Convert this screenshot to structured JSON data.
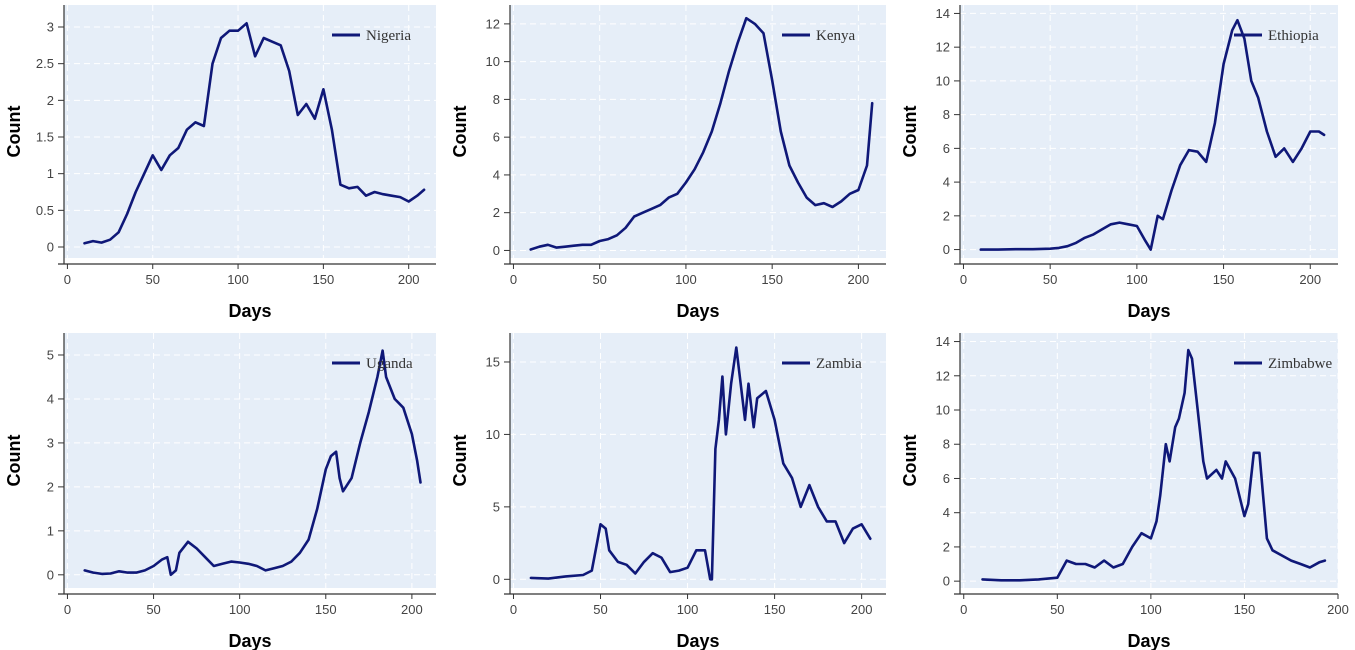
{
  "theme": {
    "panel_bg": "#e6eef8",
    "grid": "#ffffff",
    "line": "#0f1878",
    "axis": "#333333"
  },
  "chart_data": [
    {
      "type": "line",
      "legend": "top-right",
      "grid": true,
      "xlabel": "Days",
      "ylabel": "Count",
      "xlim": [
        -2,
        216
      ],
      "ylim": [
        -0.15,
        3.3
      ],
      "xticks": [
        0,
        50,
        100,
        150,
        200
      ],
      "yticks": [
        0,
        0.5,
        1,
        1.5,
        2,
        2.5,
        3
      ],
      "series": [
        {
          "name": "Nigeria",
          "x": [
            10,
            15,
            20,
            25,
            30,
            35,
            40,
            45,
            50,
            55,
            60,
            65,
            70,
            75,
            80,
            85,
            90,
            95,
            100,
            105,
            110,
            115,
            120,
            125,
            130,
            135,
            140,
            145,
            150,
            155,
            160,
            165,
            170,
            175,
            180,
            185,
            190,
            195,
            200,
            205,
            209
          ],
          "y": [
            0.05,
            0.08,
            0.06,
            0.1,
            0.2,
            0.45,
            0.75,
            1.0,
            1.25,
            1.05,
            1.25,
            1.35,
            1.6,
            1.7,
            1.65,
            2.5,
            2.85,
            2.95,
            2.95,
            3.05,
            2.6,
            2.85,
            2.8,
            2.75,
            2.4,
            1.8,
            1.95,
            1.75,
            2.15,
            1.6,
            0.85,
            0.8,
            0.82,
            0.7,
            0.75,
            0.72,
            0.7,
            0.68,
            0.62,
            0.7,
            0.78
          ]
        }
      ]
    },
    {
      "type": "line",
      "legend": "top-right",
      "grid": true,
      "xlabel": "Days",
      "ylabel": "Count",
      "xlim": [
        -2,
        216
      ],
      "ylim": [
        -0.4,
        13
      ],
      "xticks": [
        0,
        50,
        100,
        150,
        200
      ],
      "yticks": [
        0,
        2,
        4,
        6,
        8,
        10,
        12
      ],
      "series": [
        {
          "name": "Kenya",
          "x": [
            10,
            15,
            20,
            25,
            30,
            35,
            40,
            45,
            50,
            55,
            60,
            65,
            70,
            75,
            80,
            85,
            90,
            95,
            100,
            105,
            110,
            115,
            120,
            125,
            130,
            135,
            140,
            145,
            150,
            155,
            160,
            165,
            170,
            175,
            180,
            185,
            190,
            195,
            200,
            205,
            208
          ],
          "y": [
            0.05,
            0.2,
            0.3,
            0.15,
            0.2,
            0.25,
            0.3,
            0.3,
            0.5,
            0.6,
            0.8,
            1.2,
            1.8,
            2.0,
            2.2,
            2.4,
            2.8,
            3.0,
            3.6,
            4.3,
            5.2,
            6.3,
            7.8,
            9.5,
            11.0,
            12.3,
            12.0,
            11.5,
            9.0,
            6.3,
            4.5,
            3.6,
            2.8,
            2.4,
            2.5,
            2.3,
            2.6,
            3.0,
            3.2,
            4.5,
            7.8
          ]
        }
      ]
    },
    {
      "type": "line",
      "legend": "top-right",
      "grid": true,
      "xlabel": "Days",
      "ylabel": "Count",
      "xlim": [
        -2,
        216
      ],
      "ylim": [
        -0.5,
        14.5
      ],
      "xticks": [
        0,
        50,
        100,
        150,
        200
      ],
      "yticks": [
        0,
        2,
        4,
        6,
        8,
        10,
        12,
        14
      ],
      "series": [
        {
          "name": "Ethiopia",
          "x": [
            10,
            20,
            30,
            40,
            50,
            55,
            60,
            65,
            70,
            75,
            80,
            85,
            90,
            95,
            100,
            105,
            108,
            112,
            115,
            120,
            125,
            130,
            135,
            140,
            145,
            150,
            155,
            158,
            162,
            166,
            170,
            175,
            180,
            185,
            190,
            195,
            200,
            205,
            208
          ],
          "y": [
            0,
            0,
            0.02,
            0.02,
            0.05,
            0.1,
            0.2,
            0.4,
            0.7,
            0.9,
            1.2,
            1.5,
            1.6,
            1.5,
            1.4,
            0.5,
            0,
            2.0,
            1.8,
            3.5,
            5.0,
            5.9,
            5.8,
            5.2,
            7.5,
            11.0,
            13.0,
            13.6,
            12.5,
            10.0,
            9.0,
            7.0,
            5.5,
            6.0,
            5.2,
            6.0,
            7.0,
            7.0,
            6.8
          ]
        }
      ]
    },
    {
      "type": "line",
      "legend": "top-right",
      "grid": true,
      "xlabel": "Days",
      "ylabel": "Count",
      "xlim": [
        -2,
        214
      ],
      "ylim": [
        -0.3,
        5.5
      ],
      "xticks": [
        0,
        50,
        100,
        150,
        200
      ],
      "yticks": [
        0,
        1,
        2,
        3,
        4,
        5
      ],
      "series": [
        {
          "name": "Uganda",
          "x": [
            10,
            15,
            20,
            25,
            30,
            35,
            40,
            45,
            50,
            55,
            58,
            60,
            63,
            65,
            70,
            75,
            80,
            85,
            90,
            95,
            100,
            105,
            110,
            115,
            120,
            125,
            130,
            135,
            140,
            145,
            150,
            153,
            156,
            158,
            160,
            165,
            170,
            175,
            180,
            183,
            185,
            190,
            195,
            200,
            203,
            205
          ],
          "y": [
            0.1,
            0.05,
            0.02,
            0.03,
            0.08,
            0.05,
            0.05,
            0.1,
            0.2,
            0.35,
            0.4,
            0,
            0.1,
            0.5,
            0.75,
            0.6,
            0.4,
            0.2,
            0.25,
            0.3,
            0.28,
            0.25,
            0.2,
            0.1,
            0.15,
            0.2,
            0.3,
            0.5,
            0.8,
            1.5,
            2.4,
            2.7,
            2.8,
            2.2,
            1.9,
            2.2,
            3.0,
            3.7,
            4.5,
            5.1,
            4.5,
            4.0,
            3.8,
            3.2,
            2.6,
            2.1
          ]
        }
      ]
    },
    {
      "type": "line",
      "legend": "top-right",
      "grid": true,
      "xlabel": "Days",
      "ylabel": "Count",
      "xlim": [
        -2,
        214
      ],
      "ylim": [
        -0.6,
        17
      ],
      "xticks": [
        0,
        50,
        100,
        150,
        200
      ],
      "yticks": [
        0,
        5,
        10,
        15
      ],
      "series": [
        {
          "name": "Zambia",
          "x": [
            10,
            20,
            30,
            40,
            45,
            48,
            50,
            53,
            55,
            60,
            65,
            70,
            75,
            80,
            85,
            90,
            95,
            100,
            105,
            110,
            113,
            114,
            116,
            118,
            120,
            122,
            125,
            128,
            130,
            133,
            135,
            138,
            140,
            145,
            150,
            155,
            160,
            165,
            170,
            175,
            180,
            185,
            190,
            195,
            200,
            205
          ],
          "y": [
            0.1,
            0.05,
            0.2,
            0.3,
            0.6,
            2.5,
            3.8,
            3.5,
            2.0,
            1.2,
            1.0,
            0.4,
            1.2,
            1.8,
            1.5,
            0.5,
            0.6,
            0.8,
            2.0,
            2.0,
            0,
            0,
            9.0,
            11.0,
            14.0,
            10.0,
            13.5,
            16.0,
            14.0,
            11.0,
            13.5,
            10.5,
            12.5,
            13.0,
            11.0,
            8.0,
            7.0,
            5.0,
            6.5,
            5.0,
            4.0,
            4.0,
            2.5,
            3.5,
            3.8,
            2.8
          ]
        }
      ]
    },
    {
      "type": "line",
      "legend": "top-right",
      "grid": true,
      "xlabel": "Days",
      "ylabel": "Count",
      "xlim": [
        -2,
        200
      ],
      "ylim": [
        -0.4,
        14.5
      ],
      "xticks": [
        0,
        50,
        100,
        150,
        200
      ],
      "yticks": [
        0,
        2,
        4,
        6,
        8,
        10,
        12,
        14
      ],
      "series": [
        {
          "name": "Zimbabwe",
          "x": [
            10,
            20,
            30,
            40,
            50,
            55,
            60,
            65,
            70,
            75,
            80,
            85,
            90,
            95,
            100,
            103,
            105,
            108,
            110,
            113,
            115,
            118,
            120,
            122,
            125,
            128,
            130,
            135,
            138,
            140,
            145,
            150,
            152,
            155,
            158,
            160,
            162,
            165,
            170,
            175,
            180,
            185,
            190,
            193
          ],
          "y": [
            0.1,
            0.05,
            0.05,
            0.1,
            0.2,
            1.2,
            1.0,
            1.0,
            0.8,
            1.2,
            0.8,
            1.0,
            2.0,
            2.8,
            2.5,
            3.5,
            5.0,
            8.0,
            7.0,
            9.0,
            9.5,
            11.0,
            13.5,
            13.0,
            10.0,
            7.0,
            6.0,
            6.5,
            6.0,
            7.0,
            6.0,
            3.8,
            4.5,
            7.5,
            7.5,
            5.0,
            2.5,
            1.8,
            1.5,
            1.2,
            1.0,
            0.8,
            1.1,
            1.2
          ]
        }
      ]
    }
  ]
}
